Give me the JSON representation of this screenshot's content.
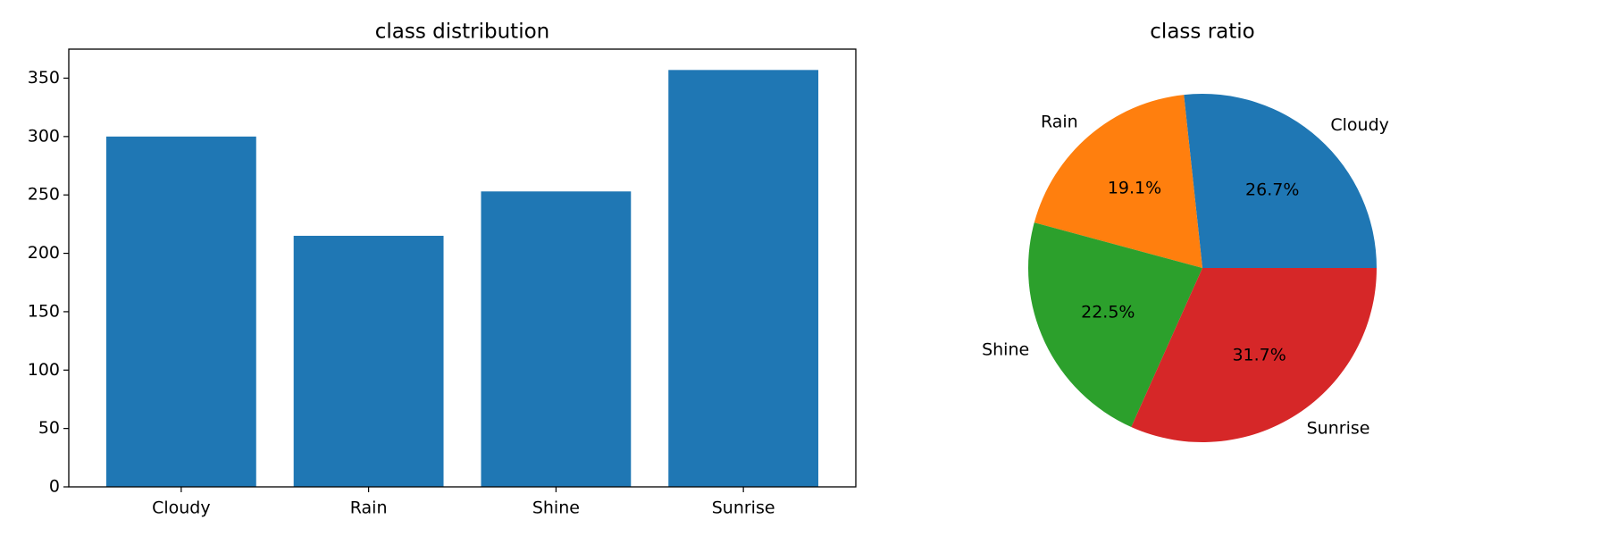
{
  "chart_data": [
    {
      "type": "bar",
      "title": "class distribution",
      "categories": [
        "Cloudy",
        "Rain",
        "Shine",
        "Sunrise"
      ],
      "values": [
        300,
        215,
        253,
        357
      ],
      "color": "#1f77b4",
      "ylim": [
        0,
        374.85
      ],
      "yticks": [
        0,
        50,
        100,
        150,
        200,
        250,
        300,
        350
      ]
    },
    {
      "type": "pie",
      "title": "class ratio",
      "categories": [
        "Cloudy",
        "Rain",
        "Shine",
        "Sunrise"
      ],
      "values": [
        26.7,
        19.1,
        22.5,
        31.7
      ],
      "value_labels": [
        "26.7%",
        "19.1%",
        "22.5%",
        "31.7%"
      ],
      "colors": [
        "#1f77b4",
        "#ff7f0e",
        "#2ca02c",
        "#d62728"
      ]
    }
  ]
}
